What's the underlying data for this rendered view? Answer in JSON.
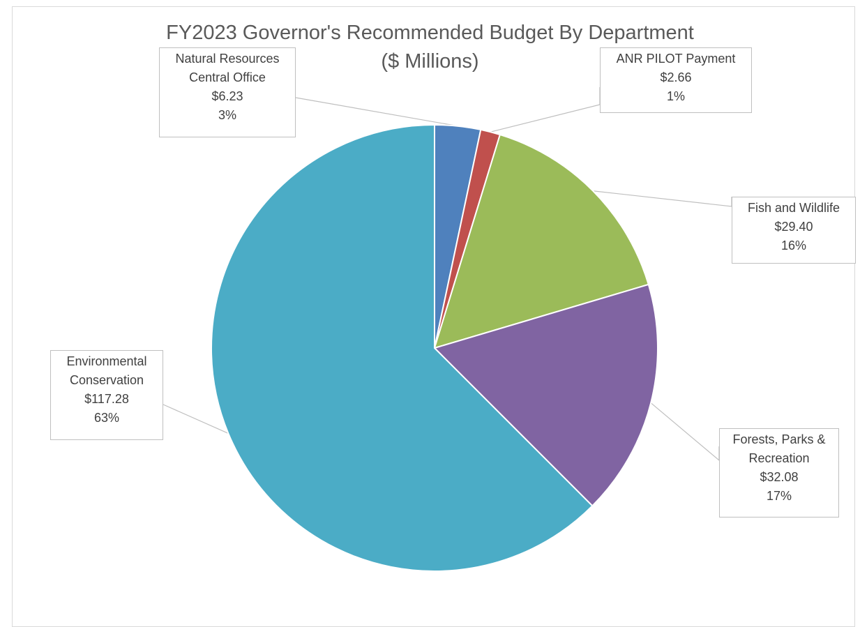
{
  "chart_data": {
    "type": "pie",
    "title": "FY2023 Governor's  Recommended Budget By Department",
    "subtitle": "($ Millions)",
    "slices": [
      {
        "label_lines": [
          "Natural Resources",
          "Central Office"
        ],
        "value_text": "$6.23",
        "percent_text": "3%",
        "value": 6.23,
        "color": "#4f81bd"
      },
      {
        "label_lines": [
          "ANR PILOT Payment"
        ],
        "value_text": "$2.66",
        "percent_text": "1%",
        "value": 2.66,
        "color": "#c0504d"
      },
      {
        "label_lines": [
          "Fish and Wildlife"
        ],
        "value_text": "$29.40",
        "percent_text": "16%",
        "value": 29.4,
        "color": "#9bbb59"
      },
      {
        "label_lines": [
          "Forests, Parks &",
          "Recreation"
        ],
        "value_text": "$32.08",
        "percent_text": "17%",
        "value": 32.08,
        "color": "#8064a2"
      },
      {
        "label_lines": [
          "Environmental",
          "Conservation"
        ],
        "value_text": "$117.28",
        "percent_text": "63%",
        "value": 117.28,
        "color": "#4bacc6"
      }
    ]
  }
}
